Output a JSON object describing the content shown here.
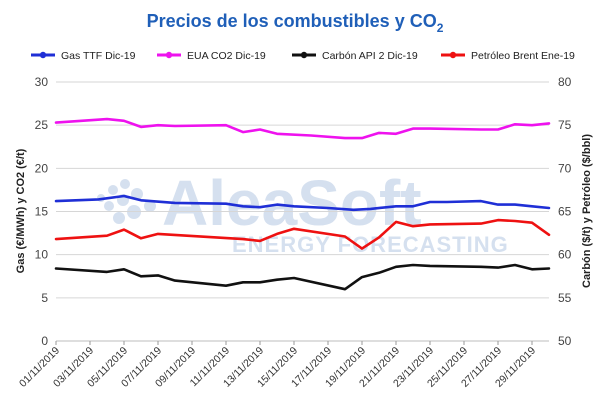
{
  "chart_data": {
    "type": "line",
    "title_main": "Precios de los combustibles y CO",
    "title_sub": "2",
    "ylabel_left": "Gas (€/MWh) y CO2 (€/t)",
    "ylabel_right": "Carbón ($/t) y Petróleo ($/bbl)",
    "ylim_left": [
      0,
      30
    ],
    "yticks_left": [
      "0",
      "5",
      "10",
      "15",
      "20",
      "25",
      "30"
    ],
    "ylim_right": [
      50,
      80
    ],
    "yticks_right": [
      "50",
      "55",
      "60",
      "65",
      "70",
      "75",
      "80"
    ],
    "x_labels": [
      "01/11/2019",
      "03/11/2019",
      "05/11/2019",
      "07/11/2019",
      "09/11/2019",
      "11/11/2019",
      "13/11/2019",
      "15/11/2019",
      "17/11/2019",
      "19/11/2019",
      "21/11/2019",
      "23/11/2019",
      "25/11/2019",
      "27/11/2019",
      "29/11/2019"
    ],
    "grid": "horizontal",
    "legend_position": "top",
    "watermark": {
      "main": "AleaSoft",
      "sub": "ENERGY FORECASTING"
    },
    "series": [
      {
        "name": "Gas TTF Dic-19",
        "axis": "left",
        "color": "#1f2fd6",
        "points": [
          [
            0,
            16.2
          ],
          [
            2.5,
            16.4
          ],
          [
            4,
            16.8
          ],
          [
            5,
            16.3
          ],
          [
            7,
            16.0
          ],
          [
            10,
            15.9
          ],
          [
            11,
            15.6
          ],
          [
            12,
            15.5
          ],
          [
            13,
            15.8
          ],
          [
            14,
            15.6
          ],
          [
            16,
            15.4
          ],
          [
            17.5,
            15.2
          ],
          [
            18.5,
            15.3
          ],
          [
            20,
            15.6
          ],
          [
            21,
            15.6
          ],
          [
            22,
            16.1
          ],
          [
            23,
            16.1
          ],
          [
            25,
            16.2
          ],
          [
            26,
            15.8
          ],
          [
            27,
            15.8
          ],
          [
            28,
            15.6
          ],
          [
            29,
            15.4
          ]
        ]
      },
      {
        "name": "EUA CO2 Dic-19",
        "axis": "left",
        "color": "#ee12ee",
        "points": [
          [
            0,
            25.3
          ],
          [
            3,
            25.7
          ],
          [
            4,
            25.5
          ],
          [
            5,
            24.8
          ],
          [
            6,
            25.0
          ],
          [
            7,
            24.9
          ],
          [
            10,
            25.0
          ],
          [
            11,
            24.2
          ],
          [
            12,
            24.5
          ],
          [
            13,
            24.0
          ],
          [
            15,
            23.8
          ],
          [
            17,
            23.5
          ],
          [
            18,
            23.5
          ],
          [
            19,
            24.1
          ],
          [
            20,
            24.0
          ],
          [
            21,
            24.6
          ],
          [
            22,
            24.6
          ],
          [
            25,
            24.5
          ],
          [
            26,
            24.5
          ],
          [
            27,
            25.1
          ],
          [
            28,
            25.0
          ],
          [
            29,
            25.2
          ]
        ]
      },
      {
        "name": "Carbón API 2 Dic-19",
        "axis": "right",
        "color": "#111111",
        "points": [
          [
            0,
            58.4
          ],
          [
            3,
            58.0
          ],
          [
            4,
            58.3
          ],
          [
            5,
            57.5
          ],
          [
            6,
            57.6
          ],
          [
            7,
            57.0
          ],
          [
            10,
            56.4
          ],
          [
            11,
            56.8
          ],
          [
            12,
            56.8
          ],
          [
            13,
            57.1
          ],
          [
            14,
            57.3
          ],
          [
            17,
            56.0
          ],
          [
            18,
            57.4
          ],
          [
            19,
            57.9
          ],
          [
            20,
            58.6
          ],
          [
            21,
            58.8
          ],
          [
            22,
            58.7
          ],
          [
            25,
            58.6
          ],
          [
            26,
            58.5
          ],
          [
            27,
            58.8
          ],
          [
            28,
            58.3
          ],
          [
            29,
            58.4
          ]
        ]
      },
      {
        "name": "Petróleo Brent Ene-19",
        "axis": "right",
        "color": "#ee1111",
        "points": [
          [
            0,
            61.8
          ],
          [
            3,
            62.2
          ],
          [
            4,
            62.9
          ],
          [
            5,
            61.9
          ],
          [
            6,
            62.4
          ],
          [
            11,
            61.8
          ],
          [
            12,
            61.6
          ],
          [
            13,
            62.4
          ],
          [
            14,
            63.0
          ],
          [
            17,
            62.1
          ],
          [
            18,
            60.7
          ],
          [
            19,
            62.0
          ],
          [
            20,
            63.8
          ],
          [
            21,
            63.3
          ],
          [
            22,
            63.5
          ],
          [
            25,
            63.6
          ],
          [
            26,
            64.0
          ],
          [
            27,
            63.9
          ],
          [
            28,
            63.7
          ],
          [
            29,
            62.3
          ]
        ]
      }
    ]
  }
}
